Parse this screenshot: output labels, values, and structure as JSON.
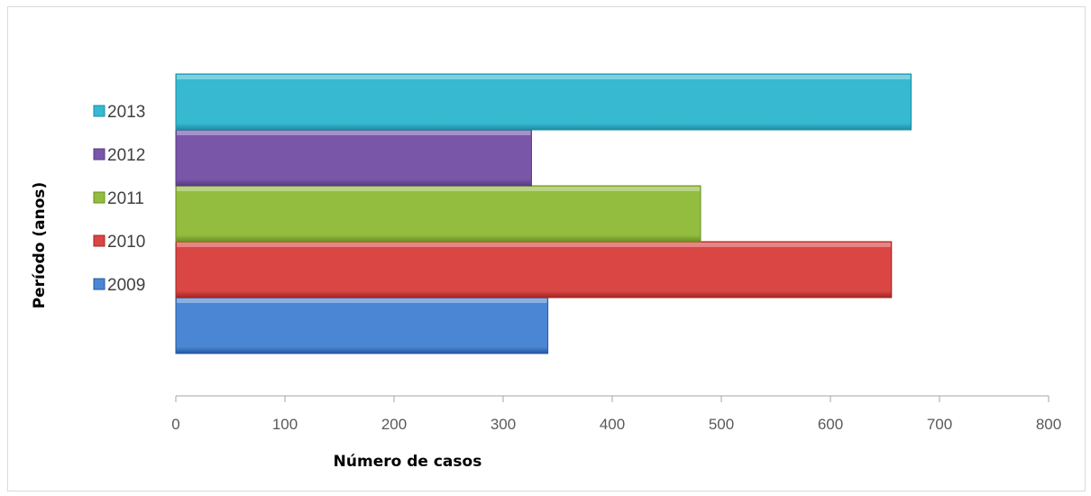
{
  "chart_data": {
    "type": "bar",
    "orientation": "horizontal",
    "title": "",
    "xlabel": "Número de casos",
    "ylabel": "Período (anos)",
    "xlim": [
      0,
      800
    ],
    "x_ticks": [
      "0",
      "100",
      "200",
      "300",
      "400",
      "500",
      "600",
      "700",
      "800"
    ],
    "grid": false,
    "legend_position": "left",
    "series": [
      {
        "name": "2009",
        "value": 341,
        "color": "#4a86d4",
        "color_dark": "#24589f"
      },
      {
        "name": "2010",
        "value": 656,
        "color": "#d94643",
        "color_dark": "#a22522"
      },
      {
        "name": "2011",
        "value": 481,
        "color": "#93bd3f",
        "color_dark": "#6a8f22"
      },
      {
        "name": "2012",
        "value": 326,
        "color": "#7a56a8",
        "color_dark": "#573983"
      },
      {
        "name": "2013",
        "value": 674,
        "color": "#36b9d1",
        "color_dark": "#1b8da3"
      }
    ]
  }
}
